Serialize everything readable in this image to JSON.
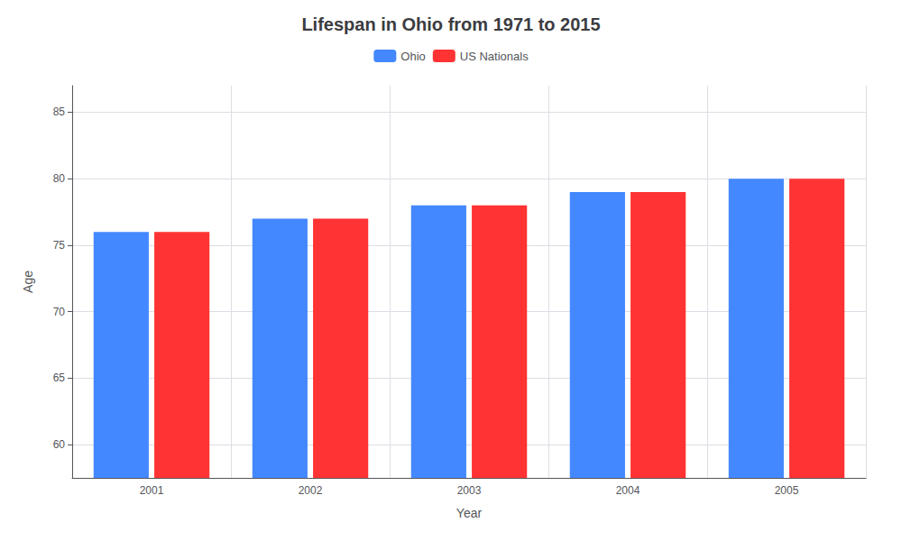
{
  "chart_data": {
    "type": "bar",
    "title": "Lifespan in Ohio from 1971 to 2015",
    "xlabel": "Year",
    "ylabel": "Age",
    "categories": [
      "2001",
      "2002",
      "2003",
      "2004",
      "2005"
    ],
    "series": [
      {
        "name": "Ohio",
        "color": "#4488ff",
        "values": [
          76,
          77,
          78,
          79,
          80
        ]
      },
      {
        "name": "US Nationals",
        "color": "#ff3333",
        "values": [
          76,
          77,
          78,
          79,
          80
        ]
      }
    ],
    "ylim": [
      57.5,
      87
    ],
    "yticks": [
      60,
      65,
      70,
      75,
      80,
      85
    ],
    "grid": true,
    "legend": "top"
  }
}
